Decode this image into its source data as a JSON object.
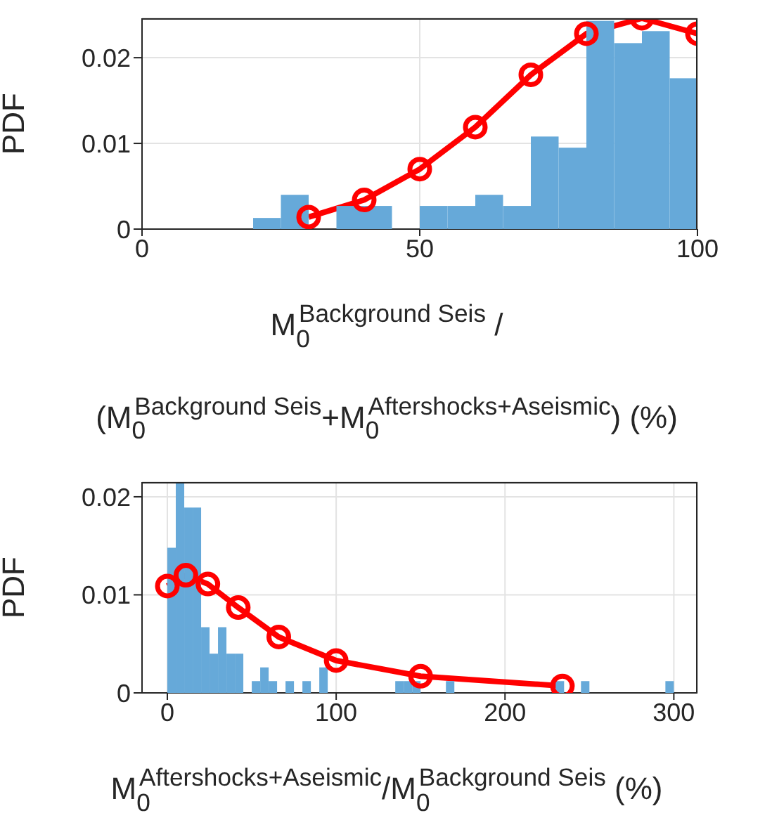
{
  "chart_data": [
    {
      "type": "histogram",
      "ylabel": "PDF",
      "xlabel": "M$_{0}$$^{Background Seis}$ / (M$_{0}$$^{Background Seis}$+M$_{0}$$^{Aftershocks+Aseismic}$) (%)",
      "xlim": [
        0,
        100
      ],
      "xticks": [
        0,
        50,
        100
      ],
      "ylim": [
        0,
        0.0246
      ],
      "yticks": [
        0,
        0.01,
        0.02
      ],
      "grid": true,
      "marker": "circle",
      "series": [
        {
          "color": "#66a9d9",
          "bins": [
            20,
            25,
            30,
            35,
            40,
            45,
            50,
            55,
            60,
            65,
            70,
            75,
            80,
            85,
            90,
            95,
            100
          ],
          "values": [
            0.0013,
            0.004,
            0,
            0.0027,
            0.0027,
            0,
            0.0027,
            0.0027,
            0.004,
            0.0027,
            0.0108,
            0.0095,
            0.0243,
            0.0217,
            0.0231,
            0.0176
          ]
        },
        {
          "type": "line",
          "color": "#ff0000",
          "x": [
            30,
            40,
            50,
            60,
            70,
            80,
            90,
            100
          ],
          "values": [
            0.0014,
            0.0034,
            0.007,
            0.0119,
            0.018,
            0.0228,
            0.0246,
            0.0228
          ]
        }
      ]
    },
    {
      "type": "histogram",
      "ylabel": "PDF",
      "xlabel": "M$_{0}$$^{Aftershocks+Aseismic}$/M$_{0}$$^{Background Seis}$ (%)",
      "xlim": [
        -15,
        314
      ],
      "xticks": [
        0,
        100,
        200,
        300
      ],
      "ylim": [
        0,
        0.0215
      ],
      "yticks": [
        0,
        0.01,
        0.02
      ],
      "grid": true,
      "marker": "circle",
      "series": [
        {
          "color": "#66a9d9",
          "bins": [
            0,
            5,
            10,
            15,
            20,
            25,
            30,
            35,
            40,
            45,
            50,
            55,
            60,
            65,
            70,
            75,
            80,
            85,
            90,
            95,
            100,
            105,
            110,
            115,
            120,
            125,
            130,
            135,
            140,
            145,
            150,
            155,
            160,
            165,
            170,
            175,
            180,
            185,
            190,
            195,
            200,
            205,
            210,
            215,
            220,
            225,
            230,
            235,
            240,
            245,
            250,
            255,
            260,
            265,
            270,
            275,
            280,
            285,
            290,
            295,
            300
          ],
          "values": [
            0.0148,
            0.0215,
            0.0189,
            0.0189,
            0.0067,
            0.004,
            0.0067,
            0.004,
            0.004,
            0,
            0.0012,
            0.0026,
            0.0012,
            0,
            0.0012,
            0,
            0.0012,
            0,
            0.0026,
            0,
            0,
            0,
            0,
            0,
            0,
            0,
            0,
            0.0012,
            0.0012,
            0.0012,
            0,
            0,
            0,
            0.0012,
            0,
            0,
            0,
            0,
            0,
            0,
            0,
            0,
            0,
            0,
            0,
            0,
            0.0012,
            0,
            0,
            0.0012,
            0,
            0,
            0,
            0,
            0,
            0,
            0,
            0,
            0,
            0.0012
          ]
        },
        {
          "type": "line",
          "color": "#ff0000",
          "x": [
            0,
            11,
            24,
            42,
            66,
            100,
            150,
            234
          ],
          "values": [
            0.0109,
            0.012,
            0.0111,
            0.0087,
            0.0057,
            0.0033,
            0.0017,
            0.0007
          ]
        }
      ]
    }
  ]
}
